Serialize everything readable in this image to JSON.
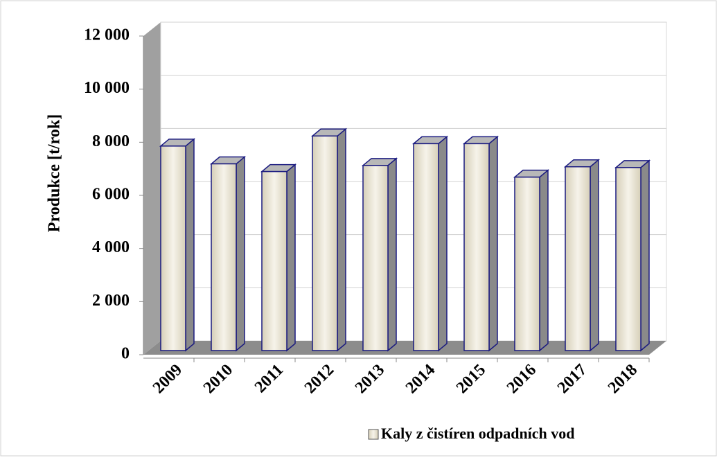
{
  "chart_data": {
    "type": "bar3d",
    "y_label": "Produkce [t/rok]",
    "categories": [
      "2009",
      "2010",
      "2011",
      "2012",
      "2013",
      "2014",
      "2015",
      "2016",
      "2017",
      "2018"
    ],
    "series": [
      {
        "name": "Kaly z čistíren odpadních vod",
        "color": "#e8e2d2",
        "values": [
          7700,
          7030,
          6740,
          8080,
          6970,
          7790,
          7790,
          6530,
          6920,
          6890
        ]
      }
    ],
    "ylim": [
      0,
      12000
    ],
    "yticks": [
      0,
      {
        "value": 2000,
        "label": "2 000"
      },
      {
        "value": 4000,
        "label": "4 000"
      },
      {
        "value": 6000,
        "label": "6 000"
      },
      {
        "value": 8000,
        "label": "8 000"
      },
      {
        "value": 10000,
        "label": "10 000"
      },
      {
        "value": 12000,
        "label": "12 000"
      }
    ],
    "grid": true,
    "legend": "bottom-right"
  }
}
